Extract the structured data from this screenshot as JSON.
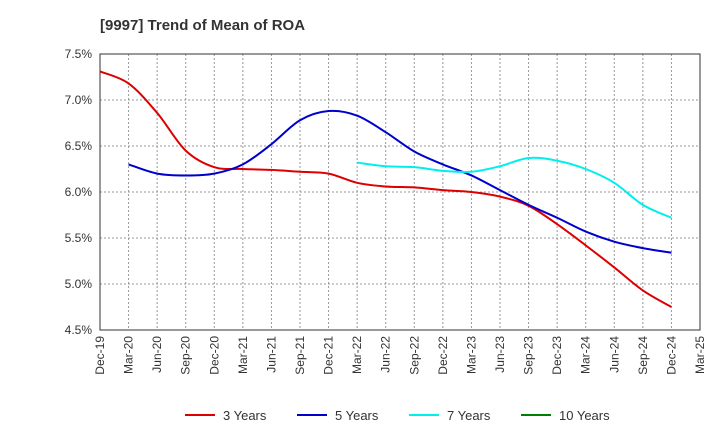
{
  "chart_data": {
    "type": "line",
    "title": "[9997]  Trend of Mean of ROA",
    "xlabel": "",
    "ylabel": "",
    "ylim": [
      4.5,
      7.5
    ],
    "y_ticks": [
      "4.5%",
      "5.0%",
      "5.5%",
      "6.0%",
      "6.5%",
      "7.0%",
      "7.5%"
    ],
    "y_tick_values": [
      4.5,
      5.0,
      5.5,
      6.0,
      6.5,
      7.0,
      7.5
    ],
    "categories": [
      "Dec-19",
      "Mar-20",
      "Jun-20",
      "Sep-20",
      "Dec-20",
      "Mar-21",
      "Jun-21",
      "Sep-21",
      "Dec-21",
      "Mar-22",
      "Jun-22",
      "Sep-22",
      "Dec-22",
      "Mar-23",
      "Jun-23",
      "Sep-23",
      "Dec-23",
      "Mar-24",
      "Jun-24",
      "Sep-24",
      "Dec-24",
      "Mar-25"
    ],
    "grid": true,
    "legend_position": "bottom",
    "series": [
      {
        "name": "3 Years",
        "color": "#dd0000",
        "values": [
          7.31,
          7.18,
          6.86,
          6.45,
          6.27,
          6.25,
          6.24,
          6.22,
          6.2,
          6.1,
          6.06,
          6.05,
          6.02,
          6.0,
          5.95,
          5.85,
          5.65,
          5.42,
          5.18,
          4.93,
          4.75,
          null
        ]
      },
      {
        "name": "5 Years",
        "color": "#0000cc",
        "values": [
          null,
          6.3,
          6.2,
          6.18,
          6.2,
          6.3,
          6.52,
          6.78,
          6.88,
          6.83,
          6.65,
          6.44,
          6.3,
          6.18,
          6.02,
          5.86,
          5.72,
          5.57,
          5.46,
          5.39,
          5.34,
          null
        ]
      },
      {
        "name": "7 Years",
        "color": "#00eeee",
        "values": [
          null,
          null,
          null,
          null,
          null,
          null,
          null,
          null,
          null,
          6.32,
          6.28,
          6.27,
          6.23,
          6.22,
          6.28,
          6.37,
          6.34,
          6.25,
          6.1,
          5.86,
          5.72,
          null
        ]
      },
      {
        "name": "10 Years",
        "color": "#008000",
        "values": [
          null,
          null,
          null,
          null,
          null,
          null,
          null,
          null,
          null,
          null,
          null,
          null,
          null,
          null,
          null,
          null,
          null,
          null,
          null,
          null,
          null,
          null
        ]
      }
    ]
  }
}
